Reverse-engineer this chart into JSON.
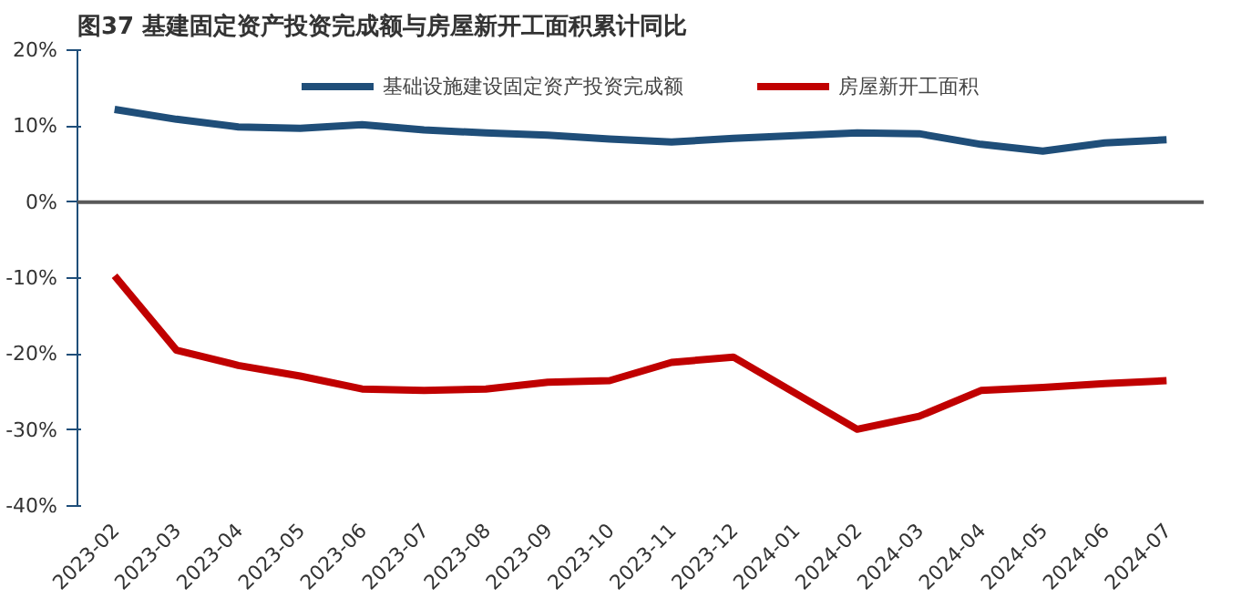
{
  "chart_data": {
    "type": "line",
    "title": "图37  基建固定资产投资完成额与房屋新开工面积累计同比",
    "categories": [
      "2023-02",
      "2023-03",
      "2023-04",
      "2023-05",
      "2023-06",
      "2023-07",
      "2023-08",
      "2023-09",
      "2023-10",
      "2023-11",
      "2023-12",
      "2024-01",
      "2024-02",
      "2024-03",
      "2024-04",
      "2024-05",
      "2024-06",
      "2024-07"
    ],
    "series": [
      {
        "name": "基础设施建设固定资产投资完成额",
        "color": "#1f4e79",
        "values": [
          12.2,
          10.9,
          9.9,
          9.7,
          10.2,
          9.5,
          9.1,
          8.8,
          8.3,
          7.9,
          8.4,
          null,
          9.1,
          9.0,
          7.6,
          6.7,
          7.8,
          8.2
        ]
      },
      {
        "name": "房屋新开工面积",
        "color": "#c00000",
        "values": [
          -9.7,
          -19.5,
          -21.5,
          -22.9,
          -24.6,
          -24.8,
          -24.6,
          -23.7,
          -23.5,
          -21.1,
          -20.4,
          null,
          -29.9,
          -28.2,
          -24.8,
          -24.4,
          -23.9,
          -23.5
        ]
      }
    ],
    "ylim": [
      -40,
      20
    ],
    "yticks": [
      {
        "value": -40,
        "label": "-40%"
      },
      {
        "value": -30,
        "label": "-30%"
      },
      {
        "value": -20,
        "label": "-20%"
      },
      {
        "value": -10,
        "label": "-10%"
      },
      {
        "value": 0,
        "label": "0%"
      },
      {
        "value": 10,
        "label": "10%"
      },
      {
        "value": 20,
        "label": "20%"
      }
    ],
    "ref_lines": [
      {
        "axis": "y",
        "value": 0,
        "color": "#595959"
      }
    ],
    "grid": false,
    "legend": "top",
    "marker": "none",
    "line_style": "solid"
  }
}
